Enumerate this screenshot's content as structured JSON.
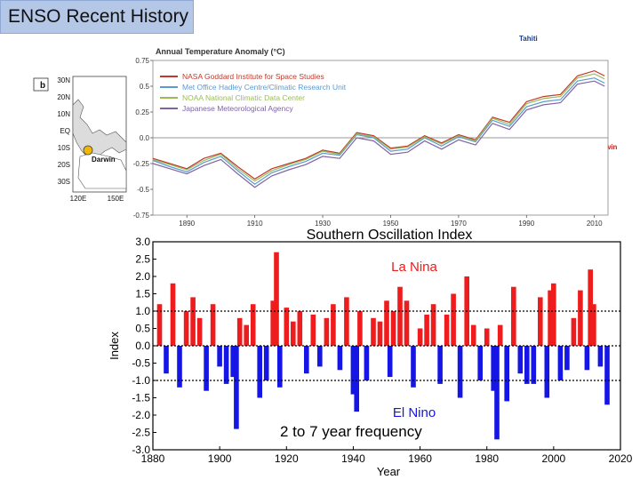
{
  "slide": {
    "title": "ENSO Recent History",
    "annotation": "2 to 7 year frequency"
  },
  "map": {
    "panel_label": "b",
    "lat_labels": [
      "30N",
      "20N",
      "10N",
      "EQ",
      "10S",
      "20S",
      "30S"
    ],
    "lon_labels": [
      "120E",
      "150E"
    ],
    "station_west": "Darwin",
    "station_east": "Tahiti",
    "marker_color": "#f2b700",
    "truncated_text": "win"
  },
  "chart_data": [
    {
      "type": "line",
      "title": "Annual Temperature Anomaly (°C)",
      "ylim": [
        -0.75,
        0.75
      ],
      "y_ticks": [
        "0.75",
        "0.5",
        "0.25",
        "0.0",
        "-0.25",
        "-0.5",
        "-0.75"
      ],
      "y_tick_values": [
        0.75,
        0.5,
        0.25,
        0.0,
        -0.25,
        -0.5,
        -0.75
      ],
      "xlim": [
        1880,
        2014
      ],
      "x_ticks": [
        "1890",
        "1910",
        "1930",
        "1950",
        "1970",
        "1990",
        "2010"
      ],
      "x_tick_values": [
        1890,
        1910,
        1930,
        1950,
        1970,
        1990,
        2010
      ],
      "legend_position": "top-left",
      "x": [
        1880,
        1885,
        1890,
        1895,
        1900,
        1905,
        1910,
        1915,
        1920,
        1925,
        1930,
        1935,
        1940,
        1945,
        1950,
        1955,
        1960,
        1965,
        1970,
        1975,
        1980,
        1985,
        1990,
        1995,
        2000,
        2005,
        2010,
        2013
      ],
      "series": [
        {
          "name": "NASA Goddard Institute for Space Studies",
          "color": "#c0392b",
          "values": [
            -0.2,
            -0.25,
            -0.3,
            -0.2,
            -0.15,
            -0.28,
            -0.4,
            -0.3,
            -0.25,
            -0.2,
            -0.12,
            -0.15,
            0.05,
            0.02,
            -0.1,
            -0.08,
            0.02,
            -0.05,
            0.03,
            -0.02,
            0.2,
            0.15,
            0.35,
            0.4,
            0.42,
            0.6,
            0.65,
            0.6
          ]
        },
        {
          "name": "Met Office Hadley Centre/Climatic Research Unit",
          "color": "#5b9bd5",
          "values": [
            -0.22,
            -0.28,
            -0.33,
            -0.24,
            -0.18,
            -0.32,
            -0.45,
            -0.34,
            -0.28,
            -0.23,
            -0.15,
            -0.17,
            0.03,
            0.0,
            -0.13,
            -0.11,
            0.0,
            -0.08,
            0.01,
            -0.04,
            0.17,
            0.11,
            0.3,
            0.35,
            0.37,
            0.55,
            0.58,
            0.53
          ]
        },
        {
          "name": "NOAA National Climatic Data Center",
          "color": "#9bbb59",
          "values": [
            -0.21,
            -0.26,
            -0.31,
            -0.22,
            -0.16,
            -0.3,
            -0.42,
            -0.32,
            -0.26,
            -0.21,
            -0.13,
            -0.16,
            0.04,
            0.01,
            -0.11,
            -0.09,
            0.01,
            -0.06,
            0.02,
            -0.03,
            0.19,
            0.13,
            0.33,
            0.38,
            0.4,
            0.58,
            0.62,
            0.57
          ]
        },
        {
          "name": "Japanese Meteorological Agency",
          "color": "#8064a2",
          "values": [
            -0.25,
            -0.3,
            -0.35,
            -0.27,
            -0.21,
            -0.35,
            -0.48,
            -0.37,
            -0.31,
            -0.26,
            -0.18,
            -0.2,
            0.0,
            -0.03,
            -0.16,
            -0.14,
            -0.03,
            -0.11,
            -0.02,
            -0.07,
            0.14,
            0.08,
            0.27,
            0.32,
            0.34,
            0.52,
            0.55,
            0.5
          ]
        }
      ]
    },
    {
      "type": "bar",
      "title": "Southern Oscillation Index",
      "xlabel": "Year",
      "ylabel": "Index",
      "ylim": [
        -3.0,
        3.0
      ],
      "y_ticks": [
        "3.0",
        "2.5",
        "2.0",
        "1.5",
        "1.0",
        "0.5",
        "0.0",
        "-0.5",
        "-1.0",
        "-1.5",
        "-2.0",
        "-2.5",
        "-3.0"
      ],
      "y_tick_values": [
        3.0,
        2.5,
        2.0,
        1.5,
        1.0,
        0.5,
        0.0,
        -0.5,
        -1.0,
        -1.5,
        -2.0,
        -2.5,
        -3.0
      ],
      "xlim": [
        1880,
        2020
      ],
      "x_ticks": [
        "1880",
        "1900",
        "1920",
        "1940",
        "1960",
        "1980",
        "2000",
        "2020"
      ],
      "x_tick_values": [
        1880,
        1900,
        1920,
        1940,
        1960,
        1980,
        2000,
        2020
      ],
      "reference_lines": [
        1.0,
        -1.0
      ],
      "positive_label": "La Nina",
      "negative_label": "El Nino",
      "positive_color": "#ee1c1c",
      "negative_color": "#1515e6",
      "x": [
        1882,
        1884,
        1886,
        1888,
        1890,
        1892,
        1894,
        1896,
        1898,
        1900,
        1902,
        1904,
        1905,
        1906,
        1908,
        1910,
        1912,
        1914,
        1916,
        1917,
        1918,
        1920,
        1922,
        1924,
        1926,
        1928,
        1930,
        1932,
        1934,
        1936,
        1938,
        1940,
        1941,
        1942,
        1944,
        1946,
        1948,
        1950,
        1951,
        1952,
        1954,
        1956,
        1958,
        1960,
        1962,
        1964,
        1966,
        1968,
        1970,
        1972,
        1974,
        1976,
        1978,
        1980,
        1982,
        1983,
        1984,
        1986,
        1988,
        1990,
        1992,
        1994,
        1996,
        1998,
        1999,
        2000,
        2002,
        2004,
        2006,
        2008,
        2010,
        2011,
        2012,
        2014,
        2016
      ],
      "values": [
        1.2,
        -0.8,
        1.8,
        -1.2,
        1.0,
        1.4,
        0.8,
        -1.3,
        1.2,
        -0.6,
        -1.1,
        -0.9,
        -2.4,
        0.8,
        0.6,
        1.2,
        -1.5,
        -1.0,
        1.3,
        2.7,
        -1.2,
        1.1,
        0.7,
        1.0,
        -0.8,
        0.9,
        -0.6,
        0.8,
        1.2,
        -0.7,
        1.4,
        -1.4,
        -1.9,
        1.0,
        -1.0,
        0.8,
        0.7,
        1.3,
        -0.9,
        1.0,
        1.7,
        1.3,
        -1.2,
        0.5,
        0.9,
        1.2,
        -1.1,
        0.9,
        1.5,
        -1.5,
        2.0,
        0.6,
        -1.0,
        0.5,
        -1.3,
        -2.7,
        0.6,
        -1.6,
        1.7,
        -0.8,
        -1.1,
        -1.1,
        1.4,
        -1.5,
        1.6,
        1.8,
        -1.0,
        -0.7,
        0.8,
        1.6,
        -0.7,
        2.2,
        1.2,
        -0.6,
        -1.7
      ]
    }
  ]
}
